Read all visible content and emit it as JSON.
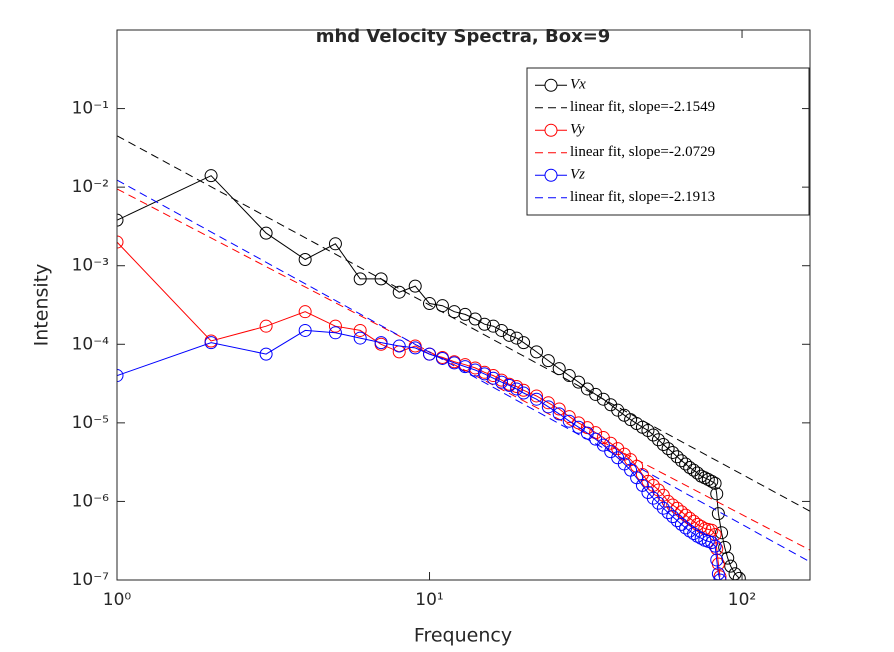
{
  "chart_data": {
    "type": "line",
    "title": "mhd Velocity Spectra, Box=9",
    "xlabel": "Frequency",
    "ylabel": "Intensity",
    "xscale": "log",
    "yscale": "log",
    "xlim": [
      1,
      165
    ],
    "ylim": [
      1e-07,
      1
    ],
    "xticks": [
      {
        "value": 1,
        "label": "10⁰"
      },
      {
        "value": 10,
        "label": "10¹"
      },
      {
        "value": 100,
        "label": "10²"
      }
    ],
    "yticks": [
      {
        "value": 1e-07,
        "label": "10⁻⁷"
      },
      {
        "value": 1e-06,
        "label": "10⁻⁶"
      },
      {
        "value": 1e-05,
        "label": "10⁻⁵"
      },
      {
        "value": 0.0001,
        "label": "10⁻⁴"
      },
      {
        "value": 0.001,
        "label": "10⁻³"
      },
      {
        "value": 0.01,
        "label": "10⁻²"
      },
      {
        "value": 0.1,
        "label": "10⁻¹"
      }
    ],
    "legend": "upper right",
    "series": [
      {
        "name": "Vx",
        "color": "#000000",
        "marker": "circle",
        "linestyle": "solid",
        "x": [
          1,
          2,
          3,
          4,
          5,
          6,
          7,
          8,
          9,
          10,
          11,
          12,
          13,
          14,
          15,
          16,
          17,
          18,
          19,
          20,
          22,
          24,
          26,
          28,
          30,
          32,
          34,
          36,
          38,
          40,
          42,
          44,
          46,
          48,
          50,
          52,
          54,
          56,
          58,
          60,
          62,
          64,
          66,
          68,
          70,
          72,
          74,
          76,
          78,
          80,
          82,
          83,
          84,
          86,
          88,
          90,
          92,
          95,
          98
        ],
        "values": [
          0.0038,
          0.014,
          0.0026,
          0.0012,
          0.0019,
          0.00068,
          0.00068,
          0.00046,
          0.00055,
          0.00033,
          0.00031,
          0.00026,
          0.00024,
          0.00021,
          0.00018,
          0.00017,
          0.00015,
          0.00013,
          0.00012,
          0.000105,
          8e-05,
          6.2e-05,
          4.9e-05,
          4e-05,
          3.3e-05,
          2.7e-05,
          2.3e-05,
          2e-05,
          1.7e-05,
          1.45e-05,
          1.25e-05,
          1.1e-05,
          9.8e-06,
          8.8e-06,
          8e-06,
          7e-06,
          6.1e-06,
          5.3e-06,
          4.7e-06,
          4.2e-06,
          3.7e-06,
          3.3e-06,
          3e-06,
          2.7e-06,
          2.5e-06,
          2.3e-06,
          2.1e-06,
          2e-06,
          1.9e-06,
          1.8e-06,
          1.7e-06,
          1.25e-06,
          7e-07,
          4e-07,
          2.6e-07,
          1.9e-07,
          1.5e-07,
          1.2e-07,
          1.05e-07
        ]
      },
      {
        "name": "linear fit, slope=-2.1549",
        "color": "#000000",
        "linestyle": "dashed",
        "x": [
          1,
          165
        ],
        "values": [
          0.045,
          7.5e-07
        ]
      },
      {
        "name": "Vy",
        "color": "#ff0000",
        "marker": "circle",
        "linestyle": "solid",
        "x": [
          1,
          2,
          3,
          4,
          5,
          6,
          7,
          8,
          9,
          10,
          11,
          12,
          13,
          14,
          15,
          16,
          17,
          18,
          19,
          20,
          22,
          24,
          26,
          28,
          30,
          32,
          34,
          36,
          38,
          40,
          42,
          44,
          46,
          48,
          50,
          52,
          54,
          56,
          58,
          60,
          62,
          64,
          66,
          68,
          70,
          72,
          74,
          76,
          78,
          80,
          82,
          83,
          84,
          85
        ],
        "values": [
          0.002,
          0.00011,
          0.00017,
          0.00026,
          0.00017,
          0.00015,
          0.0001,
          8e-05,
          9.5e-05,
          7.5e-05,
          6.8e-05,
          6e-05,
          5.5e-05,
          5e-05,
          4.4e-05,
          4e-05,
          3.5e-05,
          3.1e-05,
          2.9e-05,
          2.6e-05,
          2.2e-05,
          1.8e-05,
          1.5e-05,
          1.2e-05,
          1e-05,
          8.7e-06,
          7.5e-06,
          6.5e-06,
          5.5e-06,
          4.7e-06,
          4e-06,
          3.4e-06,
          2.8e-06,
          2.2e-06,
          1.8e-06,
          1.6e-06,
          1.4e-06,
          1.2e-06,
          1e-06,
          9e-07,
          8.2e-07,
          7.4e-07,
          6.7e-07,
          6.1e-07,
          5.6e-07,
          5.1e-07,
          4.8e-07,
          4.5e-07,
          4.4e-07,
          4.3e-07,
          3.8e-07,
          2.5e-07,
          1.6e-07,
          1.1e-07
        ]
      },
      {
        "name": "linear fit, slope=-2.0729",
        "color": "#ff0000",
        "linestyle": "dashed",
        "x": [
          1,
          165
        ],
        "values": [
          0.0095,
          2.4e-07
        ]
      },
      {
        "name": "Vz",
        "color": "#0000ff",
        "marker": "circle",
        "linestyle": "solid",
        "x": [
          1,
          2,
          3,
          4,
          5,
          6,
          7,
          8,
          9,
          10,
          11,
          12,
          13,
          14,
          15,
          16,
          17,
          18,
          19,
          20,
          22,
          24,
          26,
          28,
          30,
          32,
          34,
          36,
          38,
          40,
          42,
          44,
          46,
          48,
          50,
          52,
          54,
          56,
          58,
          60,
          62,
          64,
          66,
          68,
          70,
          72,
          74,
          76,
          78,
          80,
          82,
          83,
          84,
          85
        ],
        "values": [
          4e-05,
          0.000105,
          7.5e-05,
          0.00015,
          0.00014,
          0.00012,
          0.000105,
          9.5e-05,
          9e-05,
          7.5e-05,
          6.6e-05,
          5.8e-05,
          5.2e-05,
          4.7e-05,
          4.2e-05,
          3.7e-05,
          3.3e-05,
          3e-05,
          2.7e-05,
          2.4e-05,
          2e-05,
          1.6e-05,
          1.3e-05,
          1.05e-05,
          8.8e-06,
          7.4e-06,
          6.2e-06,
          5.2e-06,
          4.3e-06,
          3.6e-06,
          3e-06,
          2.5e-06,
          2e-06,
          1.6e-06,
          1.3e-06,
          1.1e-06,
          9.5e-07,
          8.2e-07,
          7.2e-07,
          6.4e-07,
          5.7e-07,
          5.1e-07,
          4.6e-07,
          4.2e-07,
          3.9e-07,
          3.6e-07,
          3.4e-07,
          3.2e-07,
          3.1e-07,
          3e-07,
          2.7e-07,
          1.8e-07,
          1.2e-07,
          1e-07
        ]
      },
      {
        "name": "linear fit, slope=-2.1913",
        "color": "#0000ff",
        "linestyle": "dashed",
        "x": [
          1,
          165
        ],
        "values": [
          0.0123,
          1.7e-07
        ]
      }
    ]
  }
}
